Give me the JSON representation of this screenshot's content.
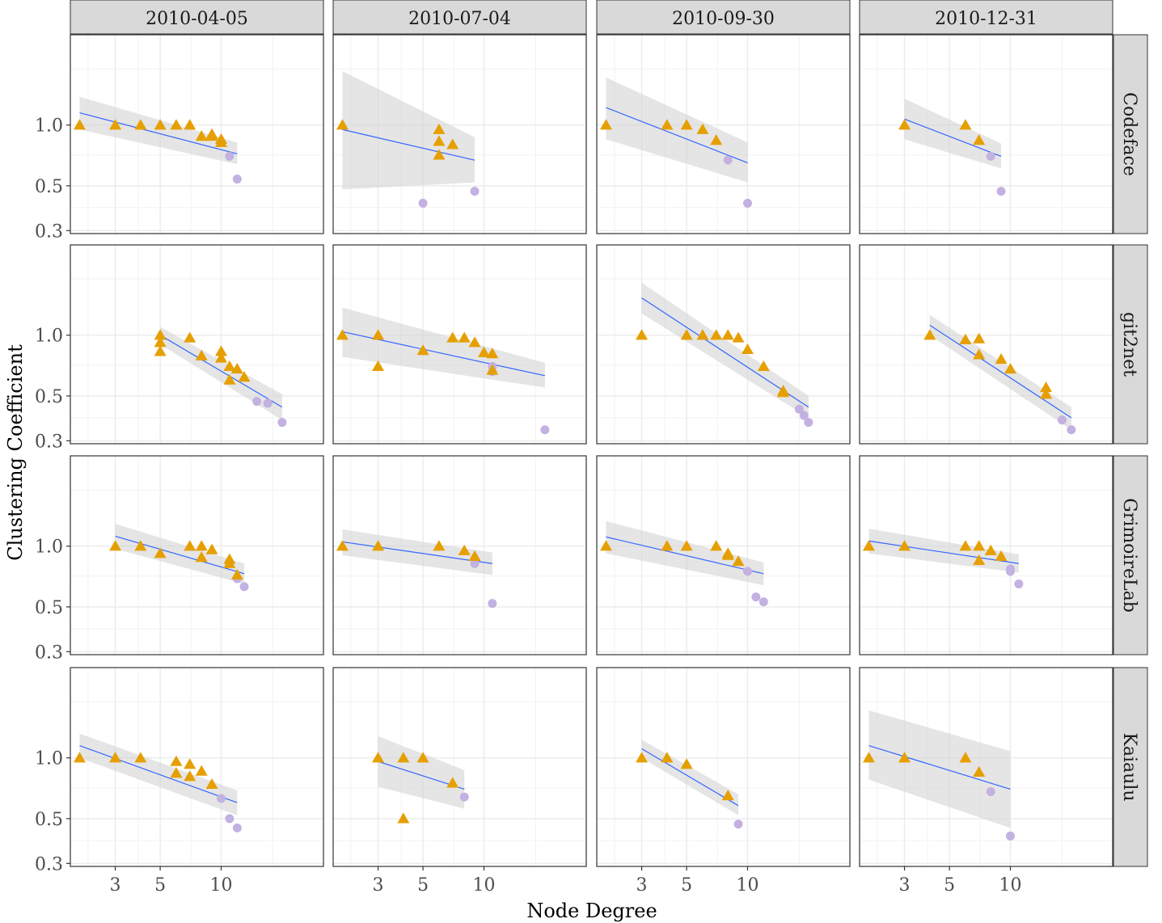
{
  "chart_data": {
    "type": "scatter",
    "xlabel": "Node Degree",
    "ylabel": "Clustering Coefficient",
    "x_scale": "log",
    "y_scale": "log",
    "xlim": [
      1.8,
      32
    ],
    "ylim": [
      0.29,
      2.8
    ],
    "x_ticks": [
      3,
      5,
      10
    ],
    "x_tick_labels": [
      "3",
      "5",
      "10"
    ],
    "y_ticks": [
      0.3,
      0.5,
      1.0
    ],
    "y_tick_labels": [
      "0.3",
      "0.5",
      "1.0"
    ],
    "columns": [
      "2010-04-05",
      "2010-07-04",
      "2010-09-30",
      "2010-12-31"
    ],
    "rows": [
      "Codeface",
      "git2net",
      "GrimoireLab",
      "Kaiaulu"
    ],
    "grid": true,
    "legend": "none",
    "colors": {
      "triangle": "#e69f00",
      "circle": "#c3b1e1",
      "fit_line": "#3366ff",
      "ribbon": "#d3d3d3",
      "strip_bg": "#d9d9d9",
      "grid": "#ebebeb",
      "border": "#333333"
    },
    "panels": [
      {
        "row": "Codeface",
        "col": "2010-04-05",
        "triangles": [
          [
            2,
            1.0
          ],
          [
            3,
            1.0
          ],
          [
            4,
            1.0
          ],
          [
            5,
            1.0
          ],
          [
            6,
            1.0
          ],
          [
            7,
            1.0
          ],
          [
            8,
            0.88
          ],
          [
            9,
            0.88
          ],
          [
            9,
            0.9
          ],
          [
            10,
            0.85
          ],
          [
            10,
            0.82
          ]
        ],
        "circles": [
          [
            11,
            0.7
          ],
          [
            12,
            0.54
          ]
        ],
        "fit": {
          "x": [
            2,
            12
          ],
          "y": [
            1.15,
            0.72
          ],
          "lo": [
            0.95,
            0.64
          ],
          "hi": [
            1.38,
            0.82
          ]
        }
      },
      {
        "row": "Codeface",
        "col": "2010-07-04",
        "triangles": [
          [
            2,
            1.0
          ],
          [
            6,
            0.95
          ],
          [
            6,
            0.83
          ],
          [
            6,
            0.71
          ],
          [
            7,
            0.8
          ]
        ],
        "circles": [
          [
            5,
            0.41
          ],
          [
            9,
            0.47
          ]
        ],
        "fit": {
          "x": [
            2,
            9
          ],
          "y": [
            0.95,
            0.67
          ],
          "lo": [
            0.48,
            0.52
          ],
          "hi": [
            1.85,
            0.87
          ]
        }
      },
      {
        "row": "Codeface",
        "col": "2010-09-30",
        "triangles": [
          [
            2,
            1.0
          ],
          [
            4,
            1.0
          ],
          [
            5,
            1.0
          ],
          [
            6,
            0.95
          ],
          [
            7,
            0.84
          ]
        ],
        "circles": [
          [
            8,
            0.67
          ],
          [
            10,
            0.41
          ]
        ],
        "fit": {
          "x": [
            2,
            10
          ],
          "y": [
            1.22,
            0.65
          ],
          "lo": [
            0.85,
            0.52
          ],
          "hi": [
            1.72,
            0.82
          ]
        }
      },
      {
        "row": "Codeface",
        "col": "2010-12-31",
        "triangles": [
          [
            3,
            1.0
          ],
          [
            6,
            1.0
          ],
          [
            7,
            0.84
          ]
        ],
        "circles": [
          [
            8,
            0.7
          ],
          [
            9,
            0.47
          ]
        ],
        "fit": {
          "x": [
            3,
            9
          ],
          "y": [
            1.07,
            0.7
          ],
          "lo": [
            0.85,
            0.61
          ],
          "hi": [
            1.35,
            0.81
          ]
        }
      },
      {
        "row": "git2net",
        "col": "2010-04-05",
        "triangles": [
          [
            5,
            1.0
          ],
          [
            5,
            0.92
          ],
          [
            5,
            0.83
          ],
          [
            7,
            0.97
          ],
          [
            8,
            0.79
          ],
          [
            10,
            0.83
          ],
          [
            10,
            0.77
          ],
          [
            11,
            0.7
          ],
          [
            11,
            0.6
          ],
          [
            12,
            0.68
          ],
          [
            13,
            0.62
          ]
        ],
        "circles": [
          [
            15,
            0.47
          ],
          [
            17,
            0.46
          ],
          [
            20,
            0.37
          ]
        ],
        "fit": {
          "x": [
            5,
            20
          ],
          "y": [
            1.0,
            0.44
          ],
          "lo": [
            0.9,
            0.38
          ],
          "hi": [
            1.1,
            0.51
          ]
        }
      },
      {
        "row": "git2net",
        "col": "2010-07-04",
        "triangles": [
          [
            2,
            1.0
          ],
          [
            3,
            1.0
          ],
          [
            3,
            0.7
          ],
          [
            5,
            0.84
          ],
          [
            7,
            0.97
          ],
          [
            8,
            0.97
          ],
          [
            9,
            0.92
          ],
          [
            10,
            0.82
          ],
          [
            11,
            0.81
          ],
          [
            11,
            0.67
          ]
        ],
        "circles": [
          [
            11,
            0.7
          ],
          [
            11,
            0.66
          ],
          [
            20,
            0.34
          ]
        ],
        "fit": {
          "x": [
            2,
            20
          ],
          "y": [
            1.04,
            0.63
          ],
          "lo": [
            0.78,
            0.55
          ],
          "hi": [
            1.37,
            0.73
          ]
        }
      },
      {
        "row": "git2net",
        "col": "2010-09-30",
        "triangles": [
          [
            3,
            1.0
          ],
          [
            5,
            1.0
          ],
          [
            6,
            1.0
          ],
          [
            7,
            1.0
          ],
          [
            8,
            1.0
          ],
          [
            9,
            0.97
          ],
          [
            10,
            0.85
          ],
          [
            12,
            0.7
          ],
          [
            15,
            0.53
          ],
          [
            15,
            0.52
          ]
        ],
        "circles": [
          [
            18,
            0.43
          ],
          [
            19,
            0.4
          ],
          [
            20,
            0.37
          ]
        ],
        "fit": {
          "x": [
            3,
            20
          ],
          "y": [
            1.53,
            0.44
          ],
          "lo": [
            1.28,
            0.39
          ],
          "hi": [
            1.82,
            0.5
          ]
        }
      },
      {
        "row": "git2net",
        "col": "2010-12-31",
        "triangles": [
          [
            4,
            1.0
          ],
          [
            6,
            0.95
          ],
          [
            7,
            0.96
          ],
          [
            7,
            0.8
          ],
          [
            9,
            0.76
          ],
          [
            10,
            0.68
          ],
          [
            15,
            0.55
          ],
          [
            15,
            0.51
          ]
        ],
        "circles": [
          [
            18,
            0.38
          ],
          [
            20,
            0.34
          ]
        ],
        "fit": {
          "x": [
            4,
            20
          ],
          "y": [
            1.12,
            0.39
          ],
          "lo": [
            1.0,
            0.34
          ],
          "hi": [
            1.26,
            0.44
          ]
        }
      },
      {
        "row": "GrimoireLab",
        "col": "2010-04-05",
        "triangles": [
          [
            3,
            1.0
          ],
          [
            4,
            1.0
          ],
          [
            5,
            0.92
          ],
          [
            7,
            1.0
          ],
          [
            8,
            1.0
          ],
          [
            9,
            0.96
          ],
          [
            8,
            0.88
          ],
          [
            11,
            0.86
          ],
          [
            11,
            0.82
          ],
          [
            12,
            0.72
          ]
        ],
        "circles": [
          [
            12,
            0.69
          ],
          [
            13,
            0.63
          ]
        ],
        "fit": {
          "x": [
            3,
            13
          ],
          "y": [
            1.12,
            0.73
          ],
          "lo": [
            0.97,
            0.65
          ],
          "hi": [
            1.29,
            0.82
          ]
        }
      },
      {
        "row": "GrimoireLab",
        "col": "2010-07-04",
        "triangles": [
          [
            2,
            1.0
          ],
          [
            3,
            1.0
          ],
          [
            6,
            1.0
          ],
          [
            8,
            0.95
          ],
          [
            9,
            0.89
          ]
        ],
        "circles": [
          [
            9,
            0.82
          ],
          [
            11,
            0.52
          ]
        ],
        "fit": {
          "x": [
            2,
            11
          ],
          "y": [
            1.05,
            0.82
          ],
          "lo": [
            0.9,
            0.72
          ],
          "hi": [
            1.21,
            0.93
          ]
        }
      },
      {
        "row": "GrimoireLab",
        "col": "2010-09-30",
        "triangles": [
          [
            2,
            1.0
          ],
          [
            4,
            1.0
          ],
          [
            5,
            1.0
          ],
          [
            7,
            1.0
          ],
          [
            8,
            0.92
          ],
          [
            8,
            0.9
          ],
          [
            9,
            0.84
          ]
        ],
        "circles": [
          [
            10,
            0.75
          ],
          [
            11,
            0.56
          ],
          [
            12,
            0.53
          ]
        ],
        "fit": {
          "x": [
            2,
            12
          ],
          "y": [
            1.11,
            0.73
          ],
          "lo": [
            0.92,
            0.64
          ],
          "hi": [
            1.33,
            0.83
          ]
        }
      },
      {
        "row": "GrimoireLab",
        "col": "2010-12-31",
        "triangles": [
          [
            2,
            1.0
          ],
          [
            3,
            1.0
          ],
          [
            6,
            1.0
          ],
          [
            7,
            1.0
          ],
          [
            8,
            0.95
          ],
          [
            9,
            0.89
          ],
          [
            7,
            0.85
          ]
        ],
        "circles": [
          [
            10,
            0.77
          ],
          [
            10,
            0.75
          ],
          [
            11,
            0.65
          ]
        ],
        "fit": {
          "x": [
            2,
            11
          ],
          "y": [
            1.06,
            0.82
          ],
          "lo": [
            0.92,
            0.74
          ],
          "hi": [
            1.22,
            0.91
          ]
        }
      },
      {
        "row": "Kaiaulu",
        "col": "2010-04-05",
        "triangles": [
          [
            2,
            1.0
          ],
          [
            3,
            1.0
          ],
          [
            4,
            1.0
          ],
          [
            6,
            0.96
          ],
          [
            7,
            0.93
          ],
          [
            8,
            0.86
          ],
          [
            6,
            0.84
          ],
          [
            7,
            0.81
          ],
          [
            9,
            0.74
          ]
        ],
        "circles": [
          [
            10,
            0.63
          ],
          [
            11,
            0.5
          ],
          [
            12,
            0.45
          ]
        ],
        "fit": {
          "x": [
            2,
            12
          ],
          "y": [
            1.15,
            0.6
          ],
          "lo": [
            1.0,
            0.52
          ],
          "hi": [
            1.32,
            0.69
          ]
        }
      },
      {
        "row": "Kaiaulu",
        "col": "2010-07-04",
        "triangles": [
          [
            3,
            1.0
          ],
          [
            4,
            1.0
          ],
          [
            5,
            1.0
          ],
          [
            4,
            0.5
          ],
          [
            7,
            0.75
          ]
        ],
        "circles": [
          [
            8,
            0.64
          ]
        ],
        "fit": {
          "x": [
            3,
            8
          ],
          "y": [
            0.96,
            0.7
          ],
          "lo": [
            0.72,
            0.56
          ],
          "hi": [
            1.28,
            0.87
          ]
        }
      },
      {
        "row": "Kaiaulu",
        "col": "2010-09-30",
        "triangles": [
          [
            3,
            1.0
          ],
          [
            4,
            1.0
          ],
          [
            5,
            0.93
          ],
          [
            8,
            0.65
          ]
        ],
        "circles": [
          [
            9,
            0.47
          ]
        ],
        "fit": {
          "x": [
            3,
            9
          ],
          "y": [
            1.11,
            0.58
          ],
          "lo": [
            1.0,
            0.52
          ],
          "hi": [
            1.23,
            0.66
          ]
        }
      },
      {
        "row": "Kaiaulu",
        "col": "2010-12-31",
        "triangles": [
          [
            2,
            1.0
          ],
          [
            3,
            1.0
          ],
          [
            6,
            1.0
          ],
          [
            7,
            0.85
          ]
        ],
        "circles": [
          [
            8,
            0.68
          ],
          [
            10,
            0.41
          ]
        ],
        "fit": {
          "x": [
            2,
            10
          ],
          "y": [
            1.15,
            0.7
          ],
          "lo": [
            0.78,
            0.45
          ],
          "hi": [
            1.72,
            1.08
          ]
        }
      }
    ]
  }
}
